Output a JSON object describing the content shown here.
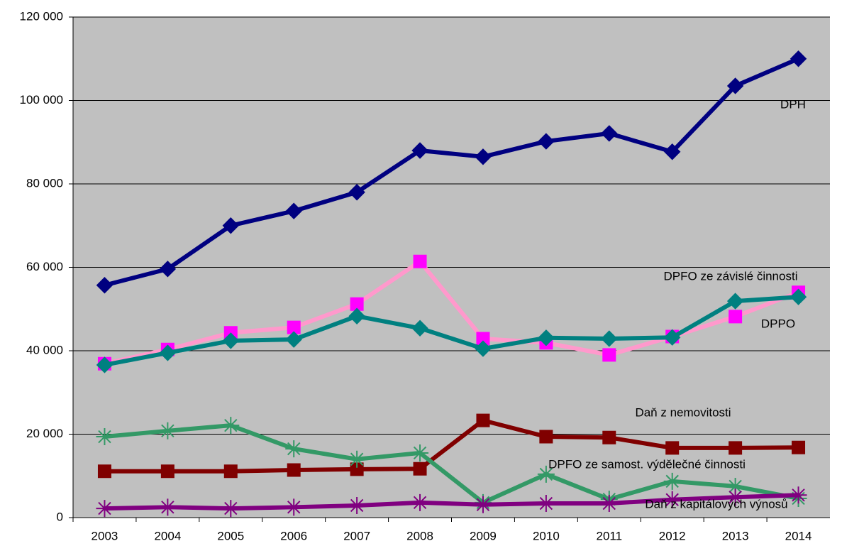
{
  "chart_data": {
    "type": "line",
    "categories": [
      "2003",
      "2004",
      "2005",
      "2006",
      "2007",
      "2008",
      "2009",
      "2010",
      "2011",
      "2012",
      "2013",
      "2014"
    ],
    "ylim": [
      0,
      120000
    ],
    "yticks": [
      {
        "value": 0,
        "label": "0"
      },
      {
        "value": 20000,
        "label": "20 000"
      },
      {
        "value": 40000,
        "label": "40 000"
      },
      {
        "value": 60000,
        "label": "60 000"
      },
      {
        "value": 80000,
        "label": "80 000"
      },
      {
        "value": 100000,
        "label": "100 000"
      },
      {
        "value": 120000,
        "label": "120 000"
      }
    ],
    "grid": true,
    "plot_background": "#c0c0c0",
    "series": [
      {
        "name": "DPH",
        "color": "#000080",
        "marker_color": "#000080",
        "marker": "diamond",
        "values": [
          55700,
          59600,
          70000,
          73500,
          78000,
          88000,
          86500,
          90200,
          92100,
          87700,
          103500,
          110000
        ]
      },
      {
        "name": "DPFO ze závislé činnosti",
        "color": "#ff99cc",
        "marker_color": "#ff00ff",
        "marker": "square",
        "values": [
          36900,
          40300,
          44300,
          45600,
          51200,
          61400,
          42900,
          41900,
          39000,
          43400,
          48200,
          54000
        ]
      },
      {
        "name": "DPPO",
        "color": "#008080",
        "marker_color": "#008080",
        "marker": "diamond",
        "values": [
          36600,
          39500,
          42400,
          42700,
          48300,
          45400,
          40500,
          43100,
          42900,
          43200,
          51900,
          52900
        ]
      },
      {
        "name": "Daň z nemovitosti",
        "color": "#800000",
        "marker_color": "#800000",
        "marker": "square",
        "values": [
          11100,
          11100,
          11100,
          11400,
          11600,
          11700,
          23300,
          19400,
          19200,
          16700,
          16700,
          16800
        ]
      },
      {
        "name": "DPFO ze samost. výdělečné činnosti",
        "color": "#339966",
        "marker_color": "#339966",
        "marker": "star",
        "values": [
          19400,
          20800,
          22100,
          16500,
          14000,
          15500,
          3600,
          10400,
          4400,
          8700,
          7500,
          4600
        ]
      },
      {
        "name": "Daň z kapitálových výnosů",
        "color": "#800080",
        "marker_color": "#800080",
        "marker": "star",
        "values": [
          2200,
          2500,
          2200,
          2500,
          2900,
          3600,
          3100,
          3400,
          3400,
          4300,
          4900,
          5400
        ]
      }
    ]
  }
}
